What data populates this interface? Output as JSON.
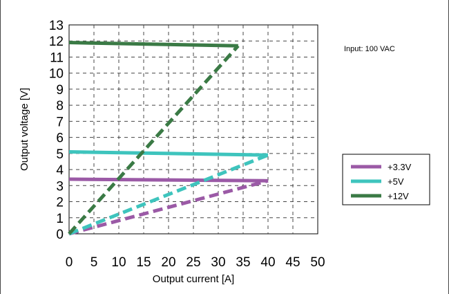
{
  "chart_data": {
    "type": "line",
    "title": "",
    "annotation": "Input: 100 VAC",
    "xlabel": "Output current [A]",
    "ylabel": "Output voltage [V]",
    "xlim": [
      0,
      50
    ],
    "ylim": [
      0,
      13
    ],
    "xticks": [
      0,
      5,
      10,
      15,
      20,
      25,
      30,
      35,
      40,
      45,
      50
    ],
    "yticks": [
      0,
      1,
      2,
      3,
      4,
      5,
      6,
      7,
      8,
      9,
      10,
      11,
      12,
      13
    ],
    "grid": true,
    "legend_position": "right",
    "series": [
      {
        "name": "+3.3V",
        "color": "#9b5aa6",
        "solid": {
          "x": [
            0,
            40
          ],
          "y": [
            3.4,
            3.3
          ]
        },
        "dashed": {
          "x": [
            0,
            40
          ],
          "y": [
            0,
            3.3
          ]
        }
      },
      {
        "name": "+5V",
        "color": "#3ec4bd",
        "solid": {
          "x": [
            0,
            40
          ],
          "y": [
            5.1,
            4.9
          ]
        },
        "dashed": {
          "x": [
            0,
            40
          ],
          "y": [
            0,
            4.9
          ]
        }
      },
      {
        "name": "+12V",
        "color": "#3a7a45",
        "solid": {
          "x": [
            0,
            34
          ],
          "y": [
            11.9,
            11.7
          ]
        },
        "dashed": {
          "x": [
            0,
            34
          ],
          "y": [
            0,
            11.7
          ]
        }
      }
    ]
  }
}
